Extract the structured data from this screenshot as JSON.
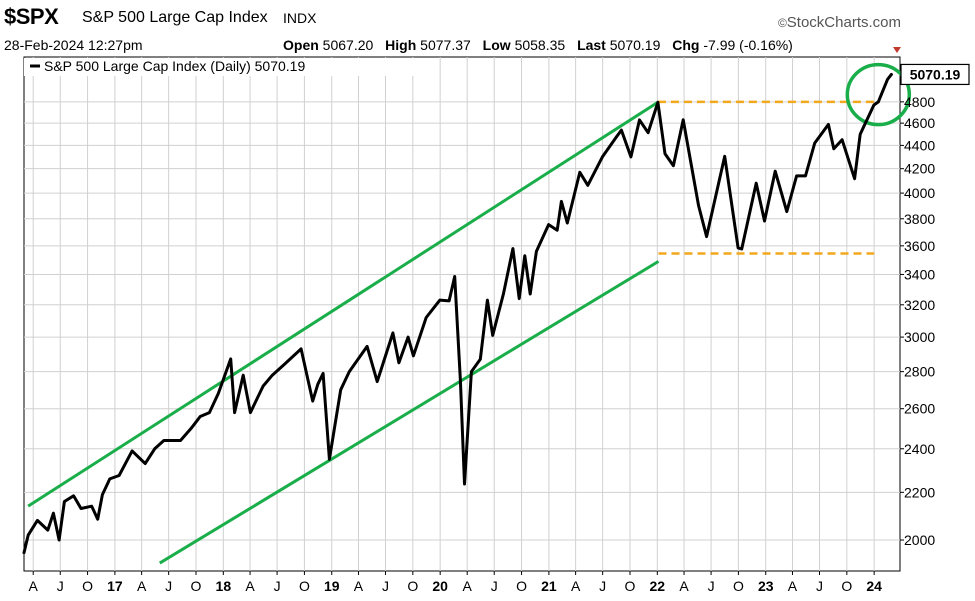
{
  "header": {
    "ticker": "$SPX",
    "name": "S&P 500 Large Cap Index",
    "suffix": "INDX",
    "brand": "StockCharts.com",
    "date": "28-Feb-2024 12:27pm",
    "open_label": "Open",
    "open": "5067.20",
    "high_label": "High",
    "high": "5077.37",
    "low_label": "Low",
    "low": "5058.35",
    "last_label": "Last",
    "last": "5070.19",
    "chg_label": "Chg",
    "chg": "-7.99 (-0.16%)"
  },
  "legend": "S&P 500 Large Cap Index (Daily) 5070.19",
  "colors": {
    "price": "#000000",
    "channel": "#1aae4a",
    "level": "#f2a81d",
    "highlight_circle": "#1aae4a",
    "down_marker": "#c0392b"
  },
  "chart_data": {
    "type": "line",
    "y_scale": "log",
    "ylim": [
      1880,
      5250
    ],
    "x_range": [
      "2016-03-01",
      "2024-03-28"
    ],
    "y_ticks": [
      2000,
      2200,
      2400,
      2600,
      2800,
      3000,
      3200,
      3400,
      3600,
      3800,
      4000,
      4200,
      4400,
      4600,
      4800
    ],
    "last_value_label": "5070.19",
    "x_ticks": [
      {
        "date": "2016-04-01",
        "label": "A",
        "bold": false
      },
      {
        "date": "2016-07-01",
        "label": "J",
        "bold": false
      },
      {
        "date": "2016-10-01",
        "label": "O",
        "bold": false
      },
      {
        "date": "2017-01-01",
        "label": "17",
        "bold": true
      },
      {
        "date": "2017-04-01",
        "label": "A",
        "bold": false
      },
      {
        "date": "2017-07-01",
        "label": "J",
        "bold": false
      },
      {
        "date": "2017-10-01",
        "label": "O",
        "bold": false
      },
      {
        "date": "2018-01-01",
        "label": "18",
        "bold": true
      },
      {
        "date": "2018-04-01",
        "label": "A",
        "bold": false
      },
      {
        "date": "2018-07-01",
        "label": "J",
        "bold": false
      },
      {
        "date": "2018-10-01",
        "label": "O",
        "bold": false
      },
      {
        "date": "2019-01-01",
        "label": "19",
        "bold": true
      },
      {
        "date": "2019-04-01",
        "label": "A",
        "bold": false
      },
      {
        "date": "2019-07-01",
        "label": "J",
        "bold": false
      },
      {
        "date": "2019-10-01",
        "label": "O",
        "bold": false
      },
      {
        "date": "2020-01-01",
        "label": "20",
        "bold": true
      },
      {
        "date": "2020-04-01",
        "label": "A",
        "bold": false
      },
      {
        "date": "2020-07-01",
        "label": "J",
        "bold": false
      },
      {
        "date": "2020-10-01",
        "label": "O",
        "bold": false
      },
      {
        "date": "2021-01-01",
        "label": "21",
        "bold": true
      },
      {
        "date": "2021-04-01",
        "label": "A",
        "bold": false
      },
      {
        "date": "2021-07-01",
        "label": "J",
        "bold": false
      },
      {
        "date": "2021-10-01",
        "label": "O",
        "bold": false
      },
      {
        "date": "2022-01-01",
        "label": "22",
        "bold": true
      },
      {
        "date": "2022-04-01",
        "label": "A",
        "bold": false
      },
      {
        "date": "2022-07-01",
        "label": "J",
        "bold": false
      },
      {
        "date": "2022-10-01",
        "label": "O",
        "bold": false
      },
      {
        "date": "2023-01-01",
        "label": "23",
        "bold": true
      },
      {
        "date": "2023-04-01",
        "label": "A",
        "bold": false
      },
      {
        "date": "2023-07-01",
        "label": "J",
        "bold": false
      },
      {
        "date": "2023-10-01",
        "label": "O",
        "bold": false
      },
      {
        "date": "2024-01-01",
        "label": "24",
        "bold": true
      }
    ],
    "series": [
      {
        "values": [
          [
            "2016-03-01",
            1950
          ],
          [
            "2016-03-15",
            2020
          ],
          [
            "2016-04-15",
            2080
          ],
          [
            "2016-05-20",
            2040
          ],
          [
            "2016-06-08",
            2110
          ],
          [
            "2016-06-27",
            2000
          ],
          [
            "2016-07-15",
            2160
          ],
          [
            "2016-08-15",
            2185
          ],
          [
            "2016-09-09",
            2130
          ],
          [
            "2016-10-15",
            2140
          ],
          [
            "2016-11-04",
            2085
          ],
          [
            "2016-11-20",
            2190
          ],
          [
            "2016-12-15",
            2260
          ],
          [
            "2017-01-15",
            2275
          ],
          [
            "2017-02-28",
            2390
          ],
          [
            "2017-04-13",
            2330
          ],
          [
            "2017-05-15",
            2400
          ],
          [
            "2017-06-15",
            2440
          ],
          [
            "2017-08-10",
            2440
          ],
          [
            "2017-09-15",
            2500
          ],
          [
            "2017-10-15",
            2560
          ],
          [
            "2017-11-15",
            2580
          ],
          [
            "2017-12-15",
            2680
          ],
          [
            "2018-01-26",
            2872
          ],
          [
            "2018-02-08",
            2580
          ],
          [
            "2018-03-09",
            2780
          ],
          [
            "2018-04-02",
            2580
          ],
          [
            "2018-05-15",
            2720
          ],
          [
            "2018-06-15",
            2780
          ],
          [
            "2018-07-25",
            2840
          ],
          [
            "2018-09-20",
            2930
          ],
          [
            "2018-10-29",
            2640
          ],
          [
            "2018-11-15",
            2730
          ],
          [
            "2018-12-03",
            2790
          ],
          [
            "2018-12-24",
            2350
          ],
          [
            "2019-01-31",
            2700
          ],
          [
            "2019-03-01",
            2800
          ],
          [
            "2019-04-30",
            2945
          ],
          [
            "2019-06-03",
            2745
          ],
          [
            "2019-07-26",
            3025
          ],
          [
            "2019-08-15",
            2850
          ],
          [
            "2019-09-15",
            3000
          ],
          [
            "2019-10-03",
            2890
          ],
          [
            "2019-11-15",
            3120
          ],
          [
            "2019-12-31",
            3230
          ],
          [
            "2020-01-31",
            3225
          ],
          [
            "2020-02-19",
            3386
          ],
          [
            "2020-03-09",
            2750
          ],
          [
            "2020-03-23",
            2237
          ],
          [
            "2020-04-15",
            2800
          ],
          [
            "2020-05-15",
            2870
          ],
          [
            "2020-06-08",
            3230
          ],
          [
            "2020-06-26",
            3010
          ],
          [
            "2020-08-01",
            3270
          ],
          [
            "2020-09-02",
            3580
          ],
          [
            "2020-09-23",
            3240
          ],
          [
            "2020-10-12",
            3530
          ],
          [
            "2020-10-30",
            3270
          ],
          [
            "2020-11-20",
            3560
          ],
          [
            "2020-12-31",
            3756
          ],
          [
            "2021-01-29",
            3714
          ],
          [
            "2021-02-12",
            3934
          ],
          [
            "2021-03-04",
            3768
          ],
          [
            "2021-04-15",
            4170
          ],
          [
            "2021-05-12",
            4063
          ],
          [
            "2021-06-30",
            4300
          ],
          [
            "2021-08-15",
            4470
          ],
          [
            "2021-09-02",
            4537
          ],
          [
            "2021-10-04",
            4300
          ],
          [
            "2021-11-02",
            4630
          ],
          [
            "2021-12-01",
            4513
          ],
          [
            "2022-01-03",
            4796
          ],
          [
            "2022-01-27",
            4327
          ],
          [
            "2022-02-24",
            4225
          ],
          [
            "2022-03-29",
            4631
          ],
          [
            "2022-05-20",
            3900
          ],
          [
            "2022-06-16",
            3667
          ],
          [
            "2022-08-16",
            4305
          ],
          [
            "2022-09-30",
            3585
          ],
          [
            "2022-10-12",
            3577
          ],
          [
            "2022-11-30",
            4080
          ],
          [
            "2022-12-28",
            3783
          ],
          [
            "2023-02-02",
            4179
          ],
          [
            "2023-03-13",
            3855
          ],
          [
            "2023-04-15",
            4140
          ],
          [
            "2023-05-15",
            4140
          ],
          [
            "2023-06-15",
            4420
          ],
          [
            "2023-07-31",
            4589
          ],
          [
            "2023-08-18",
            4370
          ],
          [
            "2023-09-15",
            4450
          ],
          [
            "2023-10-27",
            4117
          ],
          [
            "2023-11-15",
            4500
          ],
          [
            "2023-12-31",
            4770
          ],
          [
            "2024-01-15",
            4800
          ],
          [
            "2024-02-15",
            5020
          ],
          [
            "2024-02-28",
            5070.19
          ]
        ]
      }
    ],
    "annotations": {
      "upper_channel": [
        [
          "2016-03-15",
          2140
        ],
        [
          "2022-01-05",
          4800
        ]
      ],
      "lower_channel": [
        [
          "2017-06-01",
          1910
        ],
        [
          "2022-01-05",
          3490
        ]
      ],
      "resistance_level": {
        "value": 4800,
        "from": "2022-01-03",
        "to": "2024-01-20"
      },
      "support_level": {
        "value": 3545,
        "from": "2022-01-05",
        "to": "2024-01-01"
      },
      "highlight_circle_center": [
        "2024-01-15",
        4870
      ]
    }
  }
}
